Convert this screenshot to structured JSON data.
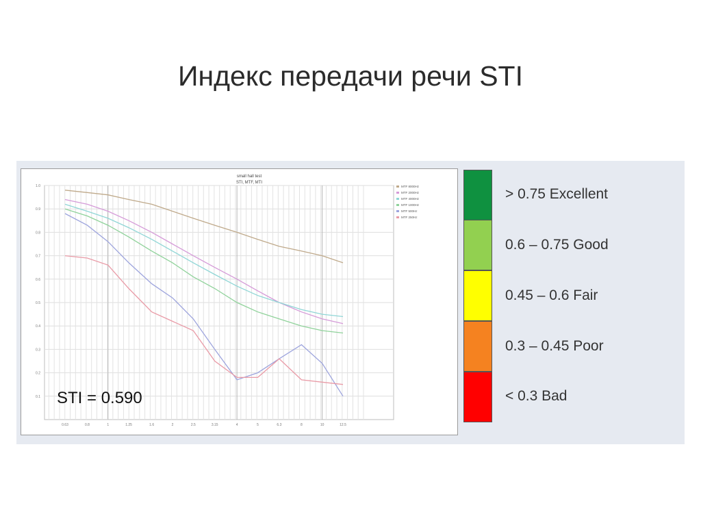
{
  "slide_title": "Индекс передачи речи STI",
  "sti_value_text": "STI = 0.590",
  "sti_scale": [
    {
      "label": "> 0.75 Excellent",
      "color": "#0f9140"
    },
    {
      "label": "0.6 – 0.75 Good",
      "color": "#92d050"
    },
    {
      "label": "0.45 – 0.6 Fair",
      "color": "#ffff00"
    },
    {
      "label": "0.3 – 0.45 Poor",
      "color": "#f58220"
    },
    {
      "label": "< 0.3 Bad",
      "color": "#ff0000"
    }
  ],
  "chart_data": {
    "type": "line",
    "title": "small hall test",
    "subtitle": "STI, MTF, MTI",
    "grid": true,
    "legend_position": "top-right",
    "ylim": [
      0,
      1
    ],
    "yticks": [
      0.1,
      0.2,
      0.3,
      0.4,
      0.5,
      0.6,
      0.7,
      0.8,
      0.9,
      1.0
    ],
    "x_tick_labels": [
      "0.63",
      "0.8",
      "1",
      "1.25",
      "1.6",
      "2",
      "2.5",
      "3.15",
      "4",
      "5",
      "6.3",
      "8",
      "10",
      "12.5"
    ],
    "x": [
      0.63,
      0.8,
      1,
      1.25,
      1.6,
      2,
      2.5,
      3.15,
      4,
      5,
      6.3,
      8,
      10,
      12.5
    ],
    "series": [
      {
        "name": "MTF 8000Hz",
        "color": "#bfa98a",
        "values": [
          0.98,
          0.97,
          0.96,
          0.94,
          0.92,
          0.89,
          0.86,
          0.83,
          0.8,
          0.77,
          0.74,
          0.72,
          0.7,
          0.67
        ]
      },
      {
        "name": "MTF 2000Hz",
        "color": "#d59ad8",
        "values": [
          0.94,
          0.92,
          0.89,
          0.85,
          0.8,
          0.75,
          0.7,
          0.65,
          0.6,
          0.55,
          0.5,
          0.46,
          0.43,
          0.41
        ]
      },
      {
        "name": "MTF 4000Hz",
        "color": "#8fd6d6",
        "values": [
          0.92,
          0.89,
          0.86,
          0.82,
          0.77,
          0.72,
          0.67,
          0.62,
          0.57,
          0.53,
          0.5,
          0.47,
          0.45,
          0.44
        ]
      },
      {
        "name": "MTF 1000Hz",
        "color": "#8fd29a",
        "values": [
          0.9,
          0.87,
          0.83,
          0.78,
          0.72,
          0.67,
          0.61,
          0.56,
          0.5,
          0.46,
          0.43,
          0.4,
          0.38,
          0.37
        ]
      },
      {
        "name": "MTF 500Hz",
        "color": "#9da4dd",
        "values": [
          0.88,
          0.83,
          0.76,
          0.67,
          0.58,
          0.52,
          0.43,
          0.3,
          0.17,
          0.2,
          0.26,
          0.32,
          0.24,
          0.1
        ]
      },
      {
        "name": "MTF 250Hz",
        "color": "#e99aa6",
        "values": [
          0.7,
          0.69,
          0.66,
          0.56,
          0.46,
          0.42,
          0.38,
          0.25,
          0.18,
          0.18,
          0.26,
          0.17,
          0.16,
          0.15
        ]
      }
    ]
  }
}
